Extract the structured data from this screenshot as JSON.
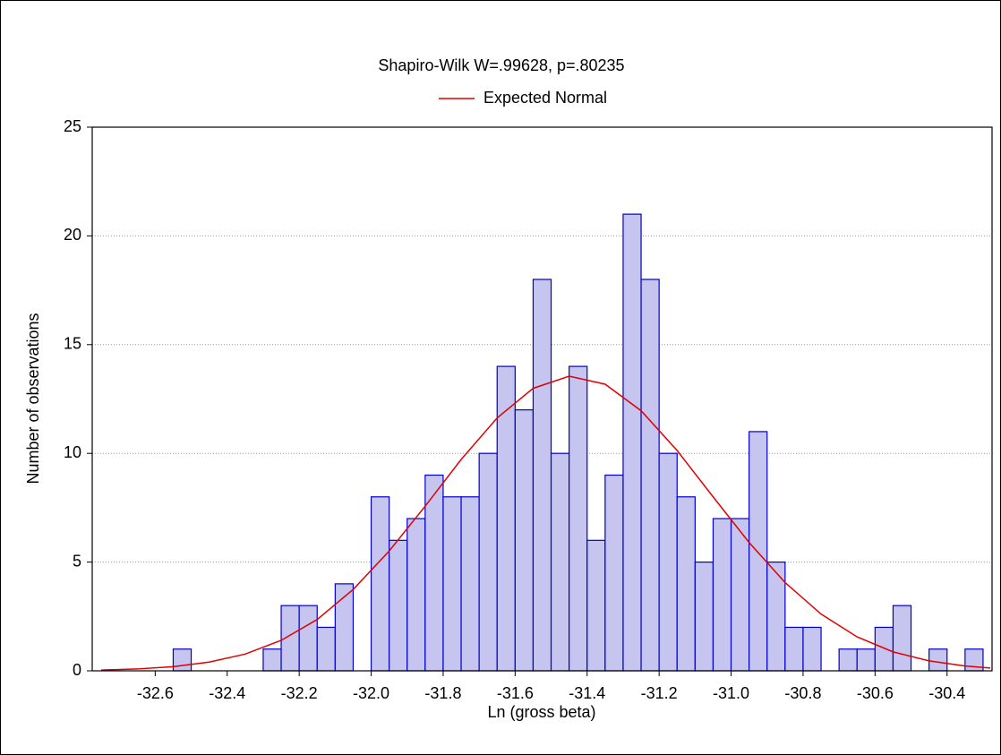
{
  "chart_data": {
    "type": "histogram",
    "title": "Shapiro-Wilk W=.99628, p=.80235",
    "xlabel": "Ln (gross beta)",
    "ylabel": "Number of observations",
    "bins": [
      -32.55,
      -32.5,
      -32.45,
      -32.4,
      -32.35,
      -32.3,
      -32.25,
      -32.2,
      -32.15,
      -32.1,
      -32.05,
      -32.0,
      -31.95,
      -31.9,
      -31.85,
      -31.8,
      -31.75,
      -31.7,
      -31.65,
      -31.6,
      -31.55,
      -31.5,
      -31.45,
      -31.4,
      -31.35,
      -31.3,
      -31.25,
      -31.2,
      -31.15,
      -31.1,
      -31.05,
      -31.0,
      -30.95,
      -30.9,
      -30.85,
      -30.8,
      -30.75,
      -30.7,
      -30.65,
      -30.6,
      -30.55,
      -30.5,
      -30.45,
      -30.4,
      -30.35,
      -30.3
    ],
    "counts": [
      1,
      0,
      0,
      0,
      0,
      1,
      3,
      3,
      2,
      4,
      0,
      8,
      6,
      7,
      9,
      8,
      8,
      10,
      14,
      12,
      18,
      10,
      14,
      6,
      9,
      21,
      18,
      10,
      8,
      5,
      7,
      7,
      11,
      5,
      2,
      2,
      0,
      1,
      1,
      2,
      3,
      0,
      1,
      0,
      1
    ],
    "color": "#c5c5ef",
    "edge_color": "#0000cc",
    "curve": {
      "name": "Expected Normal",
      "color": "#e00000",
      "x": [
        -32.75,
        -32.65,
        -32.55,
        -32.45,
        -32.35,
        -32.25,
        -32.15,
        -32.05,
        -31.95,
        -31.85,
        -31.75,
        -31.65,
        -31.55,
        -31.45,
        -31.35,
        -31.25,
        -31.15,
        -31.05,
        -30.95,
        -30.85,
        -30.75,
        -30.65,
        -30.55,
        -30.45,
        -30.35,
        -30.28
      ],
      "values": [
        0.036,
        0.085,
        0.19,
        0.4,
        0.77,
        1.4,
        2.36,
        3.74,
        5.51,
        7.57,
        9.72,
        11.63,
        12.99,
        13.55,
        13.18,
        11.96,
        10.13,
        8.0,
        5.9,
        4.06,
        2.61,
        1.56,
        0.87,
        0.46,
        0.22,
        0.13
      ]
    },
    "xlim": [
      -32.775,
      -30.275
    ],
    "ylim": [
      0,
      25
    ],
    "xticks": [
      -32.6,
      -32.4,
      -32.2,
      {
        "value": -32.0,
        "label": "-32.0"
      },
      -31.8,
      -31.6,
      -31.4,
      -31.2,
      {
        "value": -31.0,
        "label": "-31.0"
      },
      -30.8,
      -30.6,
      -30.4
    ],
    "yticks": [
      0,
      5,
      10,
      15,
      20,
      25
    ],
    "grid": "y"
  }
}
